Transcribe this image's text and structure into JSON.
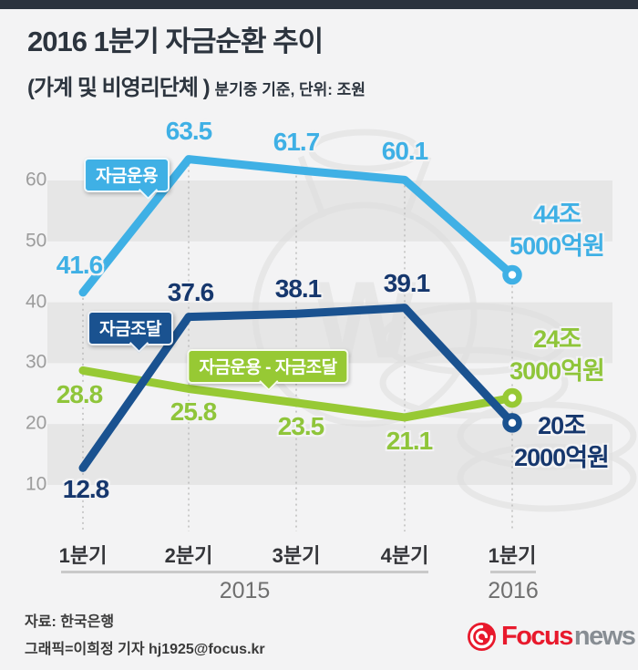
{
  "page": {
    "background": "#f3f3f4",
    "topbar_color": "#2b333e"
  },
  "header": {
    "title": "2016 1분기 자금순환 추이",
    "subtitle": "(가계 및 비영리단체 )",
    "subtitle_note": "분기중 기준, 단위: 조원"
  },
  "chart_data": {
    "type": "line",
    "title": "2016 1분기 자금순환 추이",
    "unit_note": "단위: 조원",
    "categories": [
      "1분기",
      "2분기",
      "3분기",
      "4분기",
      "1분기"
    ],
    "year_groups": [
      {
        "label": "2015",
        "from": 0,
        "to": 3
      },
      {
        "label": "2016",
        "from": 4,
        "to": 4
      }
    ],
    "yticks": [
      60,
      50,
      40,
      30,
      20,
      10
    ],
    "ylim": [
      10,
      65
    ],
    "grid": "alternating horizontal gray bands + dotted column guides",
    "legend_position": "inline callout badges on lines",
    "series": [
      {
        "name": "자금운용",
        "values": [
          41.6,
          63.5,
          61.7,
          60.1,
          44.5
        ],
        "line_color": "#3fb0e5",
        "text_color": "#3fb0e5",
        "end_label": [
          "44조",
          "5000억원"
        ]
      },
      {
        "name": "자금조달",
        "values": [
          12.8,
          37.6,
          38.1,
          39.1,
          20.2
        ],
        "line_color": "#1a5290",
        "text_color": "#16376d",
        "end_label": [
          "20조",
          "2000억원"
        ]
      },
      {
        "name": "자금운용 - 자금조달",
        "values": [
          28.8,
          25.8,
          23.5,
          21.1,
          24.3
        ],
        "line_color": "#97c934",
        "text_color": "#8fc53a",
        "end_label": [
          "24조",
          "3000억원"
        ]
      }
    ]
  },
  "footer": {
    "source": "자료: 한국은행",
    "credit": "그래픽=이희정 기자 hj1925@focus.kr",
    "logo": {
      "focus": "Focus",
      "news": "news"
    }
  }
}
